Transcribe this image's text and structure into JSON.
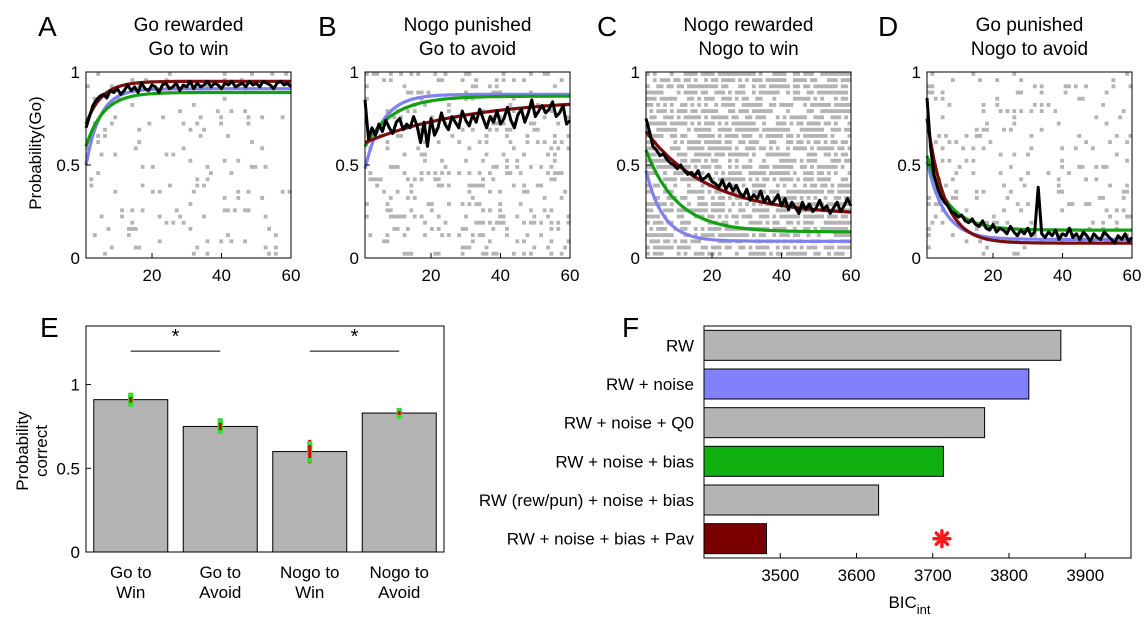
{
  "colors": {
    "data": "#000000",
    "pav_model": "#7a0c0c",
    "bias_model": "#13a013",
    "noise_model": "#8080ee",
    "raster": "#b4b4b4",
    "bar_gray": "#b4b4b4",
    "bar_blue": "#8080f8",
    "bar_green": "#10b010",
    "bar_red": "#7a0000",
    "err_red": "#e00000",
    "dot_green": "#30e030",
    "star_red": "#ff1a1a"
  },
  "chart_data": [
    {
      "panel": "A",
      "type": "line",
      "title": "Go rewarded",
      "subtitle": "Go to win",
      "ylabel": "Probability(Go)",
      "xlim": [
        1,
        60
      ],
      "ylim": [
        0,
        1
      ],
      "xticks": [
        20,
        40,
        60
      ],
      "yticks": [
        0,
        0.5,
        1
      ],
      "raster_density": 0.08,
      "raster_fill": "go",
      "series": [
        {
          "role": "data",
          "color": "#000000",
          "values": [
            0.7,
            0.76,
            0.82,
            0.85,
            0.87,
            0.88,
            0.86,
            0.9,
            0.89,
            0.91,
            0.88,
            0.9,
            0.93,
            0.9,
            0.92,
            0.89,
            0.94,
            0.91,
            0.9,
            0.93,
            0.92,
            0.89,
            0.93,
            0.94,
            0.91,
            0.92,
            0.94,
            0.9,
            0.93,
            0.92,
            0.95,
            0.91,
            0.94,
            0.92,
            0.93,
            0.95,
            0.92,
            0.94,
            0.93,
            0.91,
            0.94,
            0.93,
            0.95,
            0.92,
            0.93,
            0.94,
            0.92,
            0.95,
            0.93,
            0.94,
            0.92,
            0.95,
            0.94,
            0.93,
            0.91,
            0.94,
            0.95,
            0.93,
            0.94,
            0.92
          ]
        },
        {
          "role": "pav",
          "color": "#7a0c0c",
          "start": 0.72,
          "end": 0.95,
          "tau": 4.5
        },
        {
          "role": "bias",
          "color": "#13a013",
          "start": 0.6,
          "end": 0.89,
          "tau": 5
        },
        {
          "role": "noise",
          "color": "#8080ee",
          "start": 0.5,
          "end": 0.91,
          "tau": 4
        }
      ]
    },
    {
      "panel": "B",
      "type": "line",
      "title": "Nogo punished",
      "subtitle": "Go to avoid",
      "ylabel": "",
      "xlim": [
        1,
        60
      ],
      "ylim": [
        0,
        1
      ],
      "xticks": [
        20,
        40,
        60
      ],
      "yticks": [
        0,
        0.5,
        1
      ],
      "raster_density": 0.18,
      "raster_fill": "go",
      "series": [
        {
          "role": "data",
          "color": "#000000",
          "values": [
            0.85,
            0.64,
            0.7,
            0.66,
            0.72,
            0.68,
            0.74,
            0.7,
            0.67,
            0.73,
            0.75,
            0.69,
            0.72,
            0.7,
            0.76,
            0.71,
            0.62,
            0.73,
            0.6,
            0.75,
            0.66,
            0.7,
            0.78,
            0.72,
            0.69,
            0.76,
            0.73,
            0.7,
            0.79,
            0.74,
            0.71,
            0.77,
            0.73,
            0.8,
            0.75,
            0.7,
            0.76,
            0.73,
            0.79,
            0.72,
            0.75,
            0.81,
            0.74,
            0.7,
            0.77,
            0.8,
            0.73,
            0.78,
            0.85,
            0.76,
            0.79,
            0.82,
            0.78,
            0.8,
            0.84,
            0.76,
            0.78,
            0.82,
            0.72,
            0.74
          ]
        },
        {
          "role": "pav",
          "color": "#7a0c0c",
          "start": 0.62,
          "end": 0.86,
          "tau": 30
        },
        {
          "role": "bias",
          "color": "#13a013",
          "start": 0.6,
          "end": 0.87,
          "tau": 8
        },
        {
          "role": "noise",
          "color": "#8080ee",
          "start": 0.48,
          "end": 0.88,
          "tau": 5
        }
      ]
    },
    {
      "panel": "C",
      "type": "line",
      "title": "Nogo rewarded",
      "subtitle": "Nogo to win",
      "ylabel": "",
      "xlim": [
        1,
        60
      ],
      "ylim": [
        0,
        1
      ],
      "xticks": [
        20,
        40,
        60
      ],
      "yticks": [
        0,
        0.5,
        1
      ],
      "raster_density": 0.62,
      "raster_fill": "nogo",
      "series": [
        {
          "role": "data",
          "color": "#000000",
          "values": [
            0.75,
            0.68,
            0.6,
            0.58,
            0.55,
            0.56,
            0.53,
            0.51,
            0.5,
            0.48,
            0.5,
            0.47,
            0.45,
            0.46,
            0.44,
            0.47,
            0.42,
            0.43,
            0.45,
            0.41,
            0.4,
            0.38,
            0.42,
            0.37,
            0.4,
            0.36,
            0.39,
            0.35,
            0.33,
            0.37,
            0.31,
            0.34,
            0.32,
            0.36,
            0.3,
            0.33,
            0.29,
            0.31,
            0.34,
            0.28,
            0.32,
            0.26,
            0.3,
            0.27,
            0.24,
            0.3,
            0.26,
            0.29,
            0.25,
            0.27,
            0.31,
            0.26,
            0.28,
            0.24,
            0.27,
            0.3,
            0.25,
            0.28,
            0.32,
            0.28
          ]
        },
        {
          "role": "pav",
          "color": "#7a0c0c",
          "start": 0.68,
          "end": 0.23,
          "tau": 18
        },
        {
          "role": "bias",
          "color": "#13a013",
          "start": 0.58,
          "end": 0.14,
          "tau": 9
        },
        {
          "role": "noise",
          "color": "#8080ee",
          "start": 0.47,
          "end": 0.09,
          "tau": 5
        }
      ]
    },
    {
      "panel": "D",
      "type": "line",
      "title": "Go punished",
      "subtitle": "Nogo to avoid",
      "ylabel": "",
      "xlim": [
        1,
        60
      ],
      "ylim": [
        0,
        1
      ],
      "xticks": [
        20,
        40,
        60
      ],
      "yticks": [
        0,
        0.5,
        1
      ],
      "raster_density": 0.12,
      "raster_fill": "nogo",
      "series": [
        {
          "role": "data",
          "color": "#000000",
          "values": [
            0.86,
            0.6,
            0.45,
            0.38,
            0.33,
            0.3,
            0.28,
            0.25,
            0.24,
            0.22,
            0.23,
            0.2,
            0.19,
            0.21,
            0.18,
            0.17,
            0.2,
            0.16,
            0.15,
            0.18,
            0.14,
            0.16,
            0.15,
            0.13,
            0.17,
            0.14,
            0.12,
            0.15,
            0.13,
            0.16,
            0.12,
            0.14,
            0.38,
            0.13,
            0.11,
            0.14,
            0.12,
            0.15,
            0.1,
            0.13,
            0.12,
            0.16,
            0.11,
            0.13,
            0.1,
            0.14,
            0.12,
            0.09,
            0.13,
            0.11,
            0.1,
            0.14,
            0.12,
            0.1,
            0.08,
            0.12,
            0.1,
            0.13,
            0.09,
            0.11
          ]
        },
        {
          "role": "pav",
          "color": "#7a0c0c",
          "start": 0.75,
          "end": 0.08,
          "tau": 5
        },
        {
          "role": "bias",
          "color": "#13a013",
          "start": 0.55,
          "end": 0.15,
          "tau": 6
        },
        {
          "role": "noise",
          "color": "#8080ee",
          "start": 0.52,
          "end": 0.1,
          "tau": 5
        }
      ]
    },
    {
      "panel": "E",
      "type": "bar",
      "title": "",
      "ylabel": "Probability correct",
      "ylim": [
        0,
        1.35
      ],
      "yticks": [
        0,
        0.5,
        1
      ],
      "categories": [
        "Go to Win",
        "Go to Avoid",
        "Nogo to Win",
        "Nogo to Avoid"
      ],
      "values": [
        0.91,
        0.75,
        0.6,
        0.83
      ],
      "errors": [
        0.03,
        0.04,
        0.07,
        0.02
      ],
      "significance": [
        {
          "pair": [
            0,
            1
          ],
          "y": 1.2,
          "label": "*"
        },
        {
          "pair": [
            2,
            3
          ],
          "y": 1.2,
          "label": "*"
        }
      ]
    },
    {
      "panel": "F",
      "type": "bar",
      "orientation": "horizontal",
      "title": "",
      "xlabel": "BIC",
      "xlabel_sub": "int",
      "xlim": [
        3400,
        3960
      ],
      "xticks": [
        3500,
        3600,
        3700,
        3800,
        3900
      ],
      "categories": [
        "RW",
        "RW + noise",
        "RW + noise + Q0",
        "RW + noise + bias",
        "RW (rew/pun) + noise + bias",
        "RW + noise + bias + Pav"
      ],
      "values": [
        3868,
        3826,
        3768,
        3714,
        3629,
        3482
      ],
      "bar_colors": [
        "#b4b4b4",
        "#8080f8",
        "#b4b4b4",
        "#10b010",
        "#b4b4b4",
        "#7a0000"
      ],
      "marker": {
        "x": 3712,
        "label": "*"
      }
    }
  ]
}
